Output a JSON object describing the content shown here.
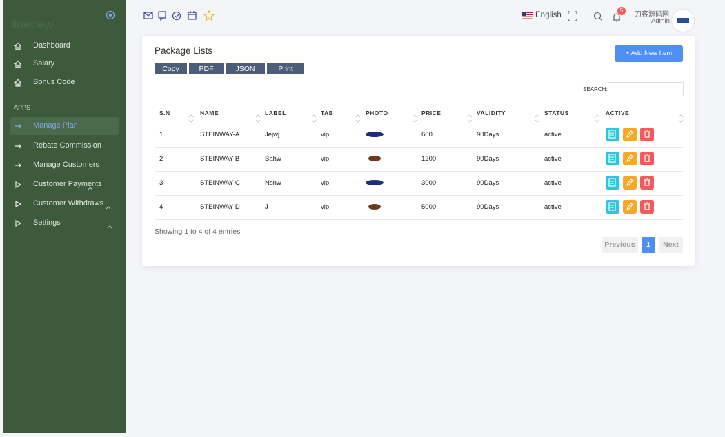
{
  "sidebar": {
    "logo": "lineview",
    "menu": [
      "Dashboard",
      "Salary",
      "Bonus Code"
    ],
    "section": "APPS",
    "apps": [
      "Manage Plan",
      "Rebate Commission",
      "Manage Customers",
      "Customer Payments",
      "Customer Withdraws",
      "Settings"
    ]
  },
  "topbar": {
    "language": "English",
    "badge": "5",
    "site": "刀客源码网",
    "user": "Admin"
  },
  "card": {
    "title": "Package Lists",
    "export_buttons": [
      "Copy",
      "PDF",
      "JSON",
      "Print"
    ],
    "add_button": "+ Add New Item",
    "search_label": "SEARCH:",
    "table": {
      "columns": [
        "S.N",
        "NAME",
        "LABEL",
        "TAB",
        "PHOTO",
        "PRICE",
        "VALIDITY",
        "STATUS",
        "ACTIVE"
      ],
      "rows": [
        [
          "1",
          "STEINWAY-A",
          "Jejwj",
          "vip",
          "",
          "600",
          "90Days",
          "active"
        ],
        [
          "2",
          "STEINWAY-B",
          "Bahw",
          "vip",
          "",
          "1200",
          "90Days",
          "active"
        ],
        [
          "3",
          "STEINWAY-C",
          "Nsnw",
          "vip",
          "",
          "3000",
          "90Days",
          "active"
        ],
        [
          "4",
          "STEINWAY-D",
          "J",
          "vip",
          "",
          "5000",
          "90Days",
          "active"
        ]
      ]
    },
    "info": "Showing 1 to 4 of 4 entries",
    "pagination": {
      "previous": "Previous",
      "page": "1",
      "next": "Next"
    }
  }
}
